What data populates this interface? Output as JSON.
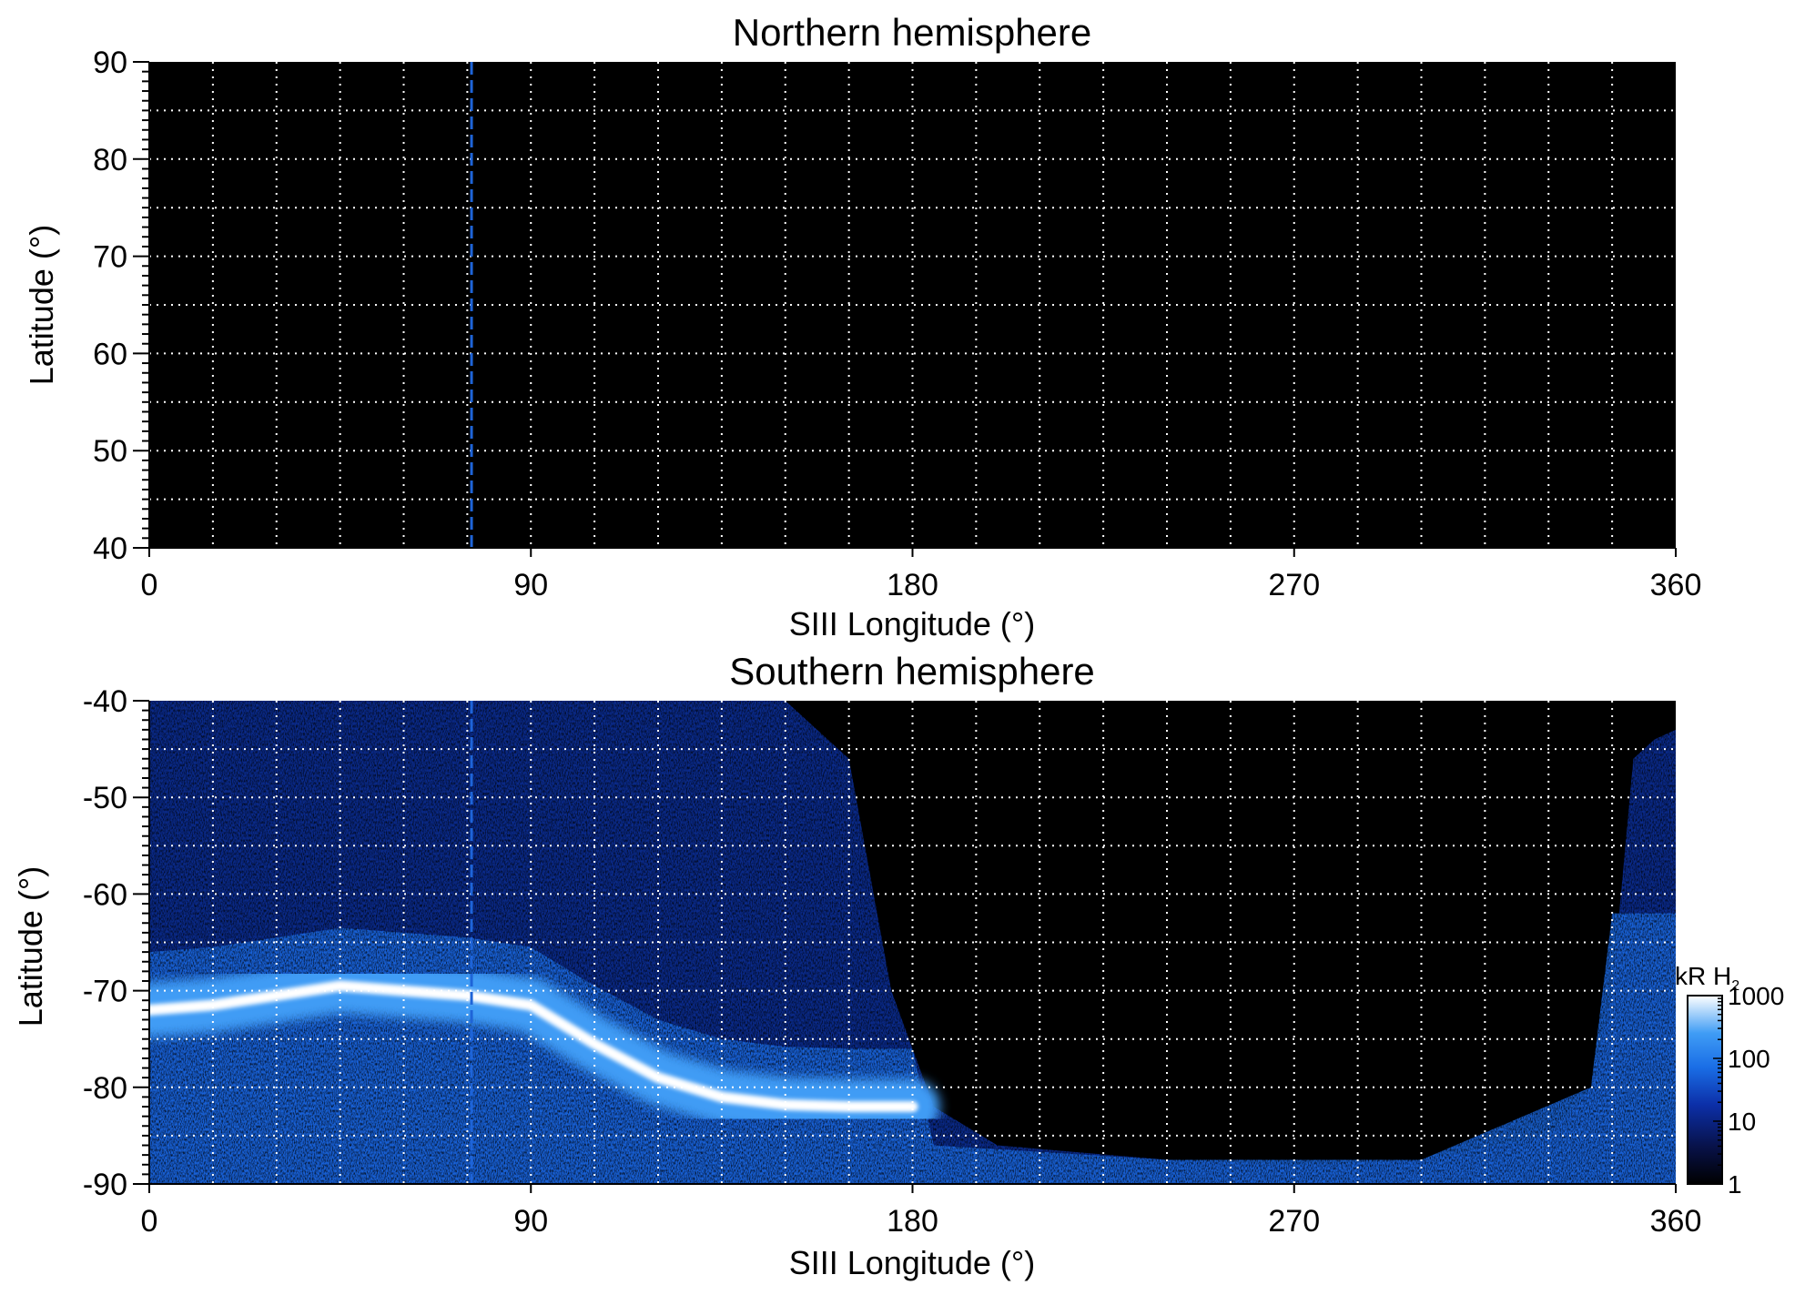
{
  "chart_data": [
    {
      "type": "heatmap",
      "title": "Northern hemisphere",
      "xlabel": "SIII Longitude (°)",
      "ylabel": "Latitude (°)",
      "xlim": [
        0,
        360
      ],
      "ylim": [
        40,
        90
      ],
      "xticks": [
        0,
        90,
        180,
        270,
        360
      ],
      "yticks": [
        40,
        50,
        60,
        70,
        80,
        90
      ],
      "grid": true,
      "grid_x_step": 15,
      "grid_y_step": 5,
      "reference_longitude": 76,
      "background_color": "#000000",
      "emission": "none"
    },
    {
      "type": "heatmap",
      "title": "Southern hemisphere",
      "xlabel": "SIII Longitude (°)",
      "ylabel": "Latitude (°)",
      "xlim": [
        0,
        360
      ],
      "ylim": [
        -90,
        -40
      ],
      "xticks": [
        0,
        90,
        180,
        270,
        360
      ],
      "yticks": [
        -40,
        -50,
        -60,
        -70,
        -80,
        -90
      ],
      "grid": true,
      "grid_x_step": 15,
      "grid_y_step": 5,
      "reference_longitude": 76,
      "main_oval": {
        "longitude": [
          0,
          15,
          30,
          45,
          60,
          75,
          90,
          105,
          120,
          135,
          150,
          165,
          180
        ],
        "latitude": [
          -72,
          -71.5,
          -70.5,
          -69.5,
          -70,
          -70.5,
          -71.5,
          -75.5,
          -79,
          -81,
          -81.8,
          -82,
          -82
        ],
        "intensity_kR": 1000
      },
      "observed_region": {
        "edge_longitude": [
          0,
          150,
          165,
          175,
          185,
          200,
          240,
          270,
          300,
          330,
          340,
          345,
          350,
          355,
          360
        ],
        "edge_latitude": [
          -40,
          -40,
          -46,
          -70,
          -82,
          -86,
          -87.5,
          -88,
          -87.5,
          -85,
          -80,
          -70,
          -46,
          -44,
          -43
        ]
      },
      "colorbar": {
        "label": "kR H",
        "label_subscript": "2",
        "scale": "log",
        "range": [
          1,
          1000
        ],
        "ticks": [
          "1",
          "10",
          "100",
          "1000"
        ],
        "colors": [
          "#000000",
          "#0a1a6e",
          "#1565d8",
          "#2d8cf0",
          "#ffffff"
        ]
      }
    }
  ]
}
